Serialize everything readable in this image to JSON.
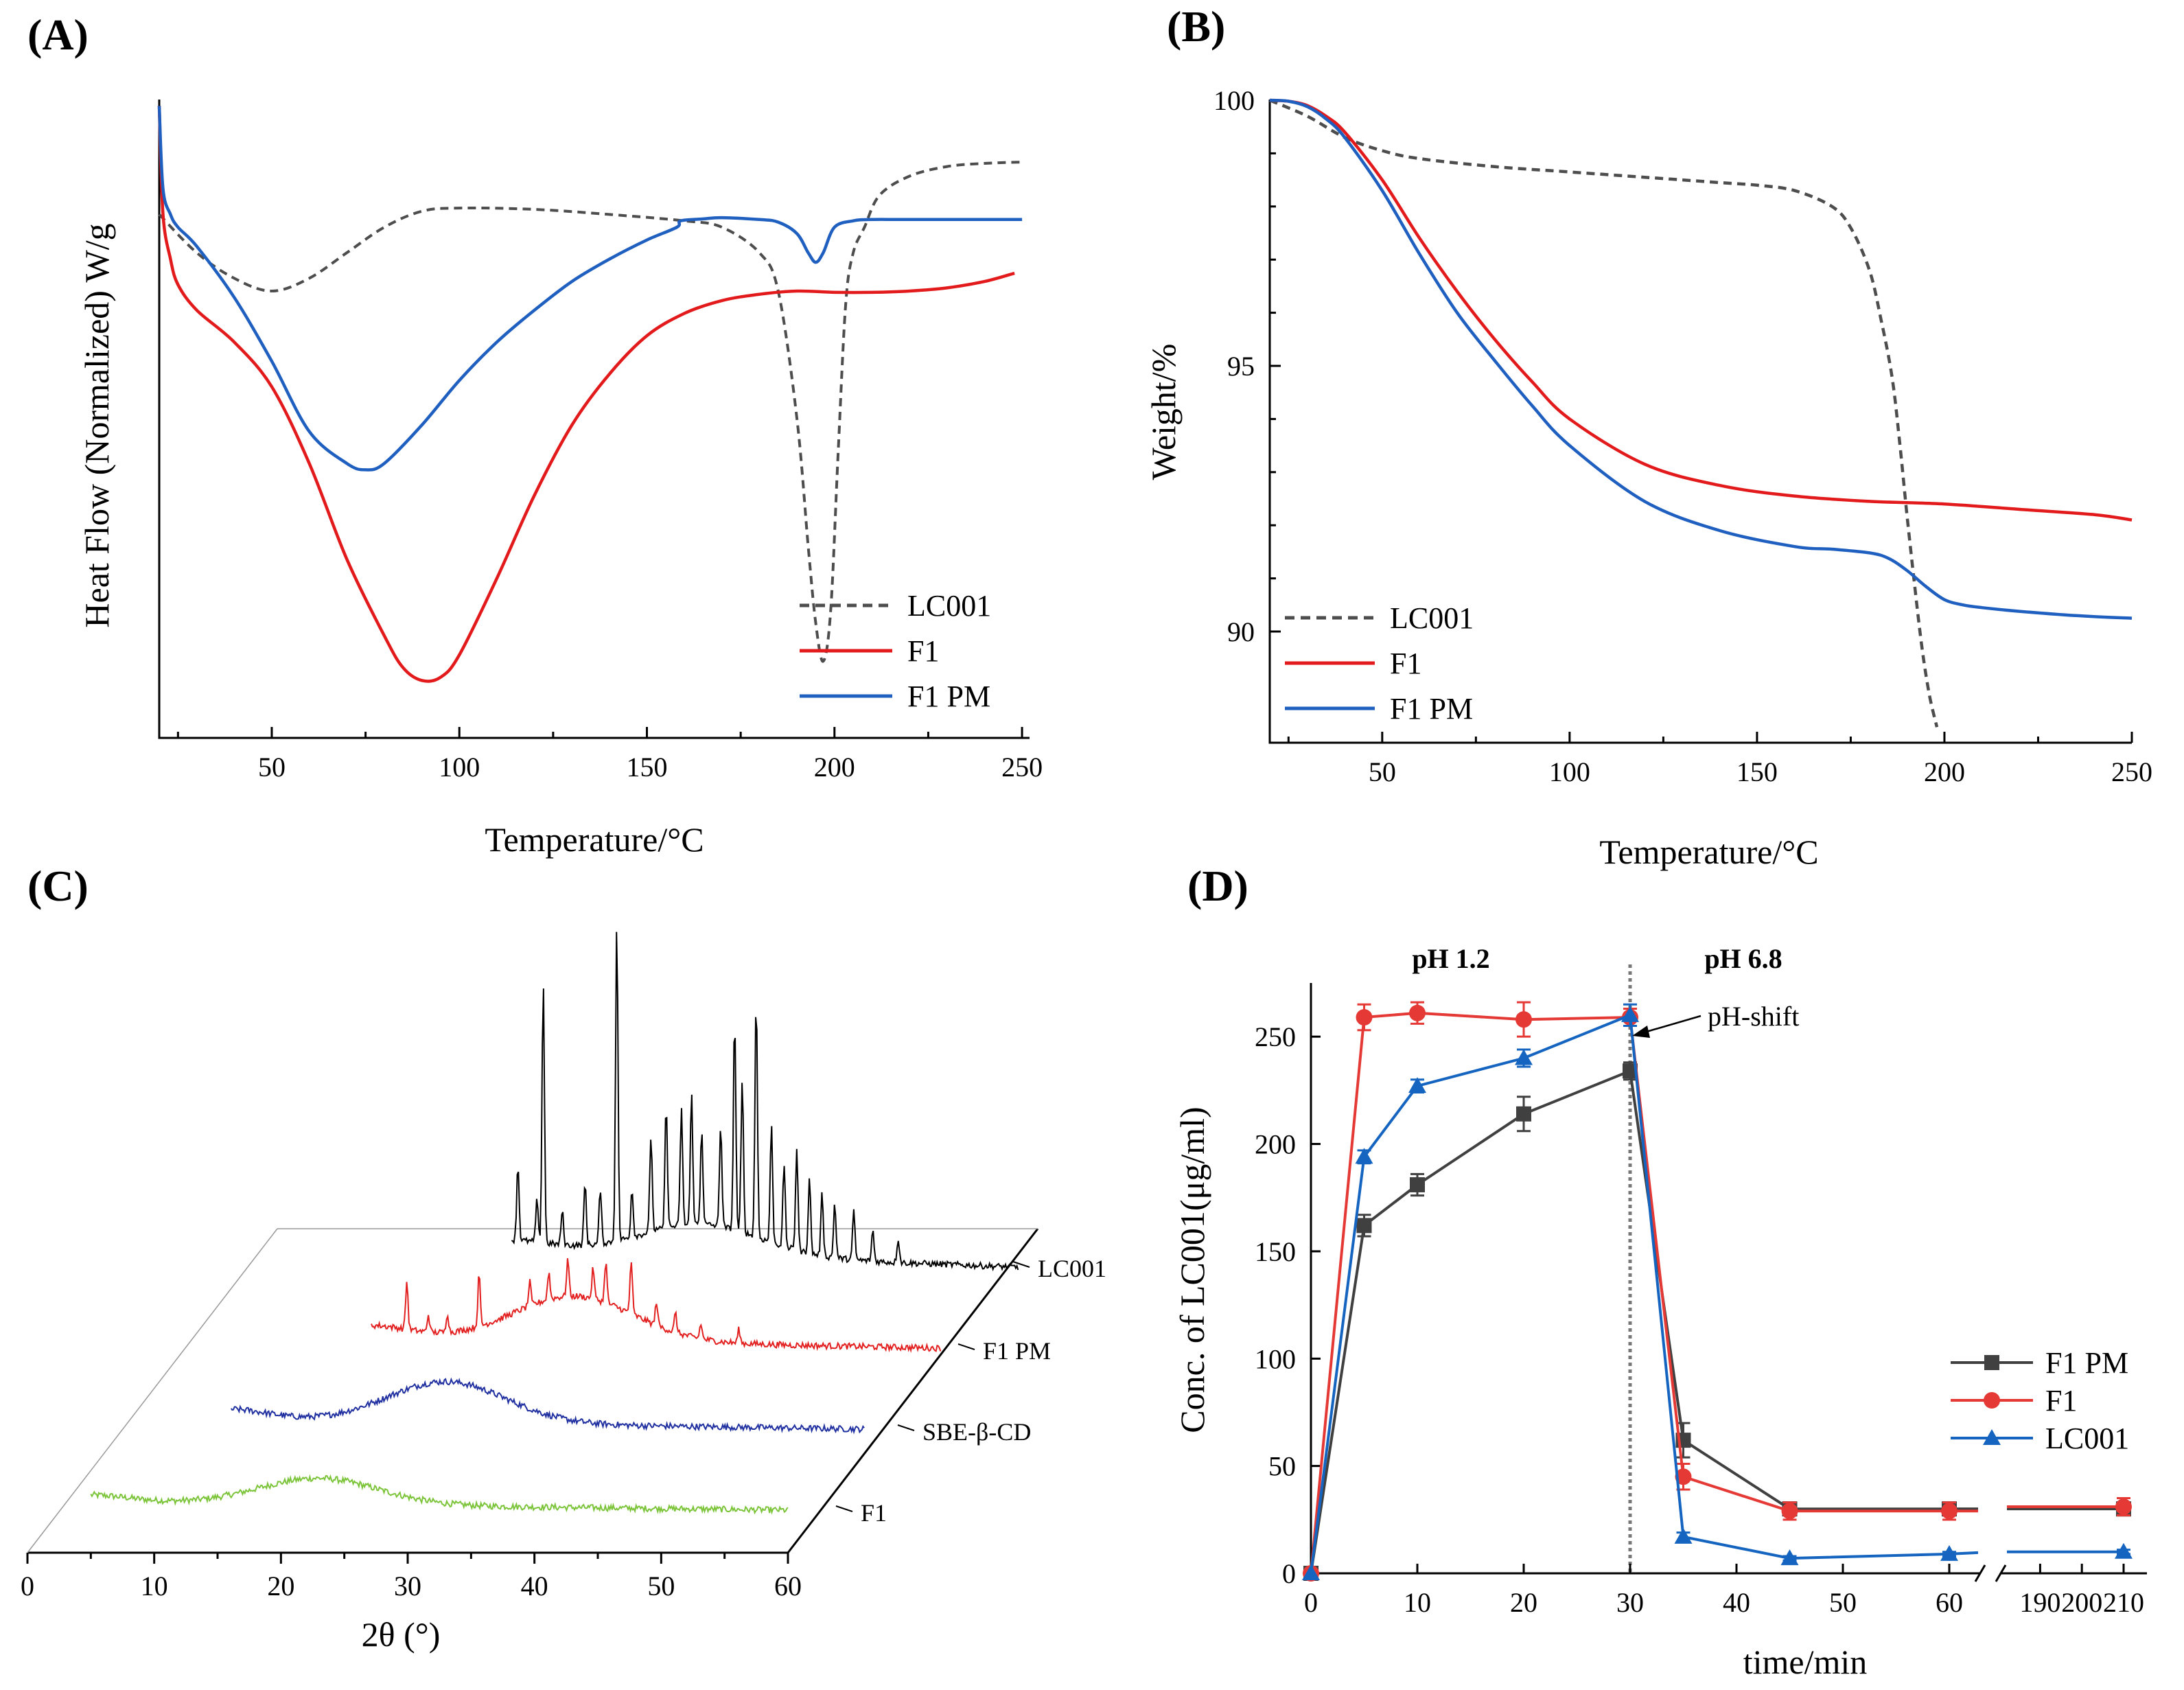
{
  "panels": {
    "A": "(A)",
    "B": "(B)",
    "C": "(C)",
    "D": "(D)"
  },
  "colors": {
    "LC001": "#4d4d4d",
    "F1": "#e31a1c",
    "F1_PM": "#1f5fbf",
    "D_F1PM": "#404040",
    "D_F1": "#e53935",
    "D_LC001": "#1565c0",
    "xrd_LC001": "#000000",
    "xrd_F1PM": "#e32020",
    "xrd_SBE": "#2030a0",
    "xrd_F1": "#7cc43a"
  },
  "chart_data": [
    {
      "id": "A",
      "type": "line",
      "title": "",
      "xlabel": "Temperature/°C",
      "ylabel": "Heat Flow (Normalized) W/g",
      "xlim": [
        20,
        250
      ],
      "ylim": [
        0,
        100
      ],
      "xticks": [
        "50",
        "100",
        "150",
        "200",
        "250"
      ],
      "legend": [
        "LC001",
        "F1",
        "F1 PM"
      ],
      "series": [
        {
          "name": "LC001",
          "style": "dashed",
          "x": [
            20,
            30,
            40,
            50,
            60,
            70,
            80,
            90,
            100,
            120,
            140,
            160,
            170,
            180,
            185,
            190,
            193,
            195,
            197,
            199,
            201,
            203,
            205,
            208,
            212,
            220,
            230,
            240,
            250
          ],
          "y": [
            82,
            76,
            72,
            70,
            72,
            76,
            80,
            82.5,
            83,
            82.8,
            82,
            81,
            80,
            76,
            70,
            50,
            30,
            18,
            12,
            20,
            45,
            68,
            76,
            80,
            85,
            88,
            89.5,
            90,
            90.2
          ]
        },
        {
          "name": "F1",
          "style": "solid",
          "x": [
            20,
            21,
            23,
            25,
            30,
            40,
            50,
            60,
            70,
            80,
            85,
            90,
            95,
            100,
            110,
            120,
            130,
            140,
            150,
            160,
            170,
            180,
            190,
            200,
            210,
            220,
            230,
            240,
            248
          ],
          "y": [
            99,
            82,
            75,
            71,
            67,
            62,
            55,
            43,
            28,
            16,
            11,
            9,
            9.5,
            13,
            25,
            38,
            49,
            57,
            63,
            66.5,
            68.5,
            69.5,
            70,
            69.8,
            69.8,
            70,
            70.5,
            71.5,
            72.8
          ]
        },
        {
          "name": "F1 PM",
          "style": "solid",
          "x": [
            20,
            21,
            23,
            25,
            30,
            40,
            50,
            60,
            70,
            75,
            80,
            90,
            100,
            110,
            120,
            130,
            140,
            150,
            158,
            159,
            165,
            170,
            180,
            185,
            190,
            193,
            195,
            197,
            200,
            205,
            210,
            220,
            250
          ],
          "y": [
            99,
            86,
            82,
            80,
            77,
            69,
            59,
            48,
            43,
            42,
            43,
            49,
            56,
            62,
            67,
            71.5,
            75,
            78,
            80,
            81,
            81.3,
            81.5,
            81.2,
            80.8,
            79,
            76,
            74.5,
            76,
            80,
            81,
            81.2,
            81.2,
            81.2
          ]
        }
      ]
    },
    {
      "id": "B",
      "type": "line",
      "title": "",
      "xlabel": "Temperature/°C",
      "ylabel": "Weight/%",
      "xlim": [
        20,
        250
      ],
      "ylim": [
        88,
        100.1
      ],
      "xticks": [
        "50",
        "100",
        "150",
        "200",
        "250"
      ],
      "yticks": [
        "90",
        "95",
        "100"
      ],
      "legend": [
        "LC001",
        "F1",
        "F1 PM"
      ],
      "series": [
        {
          "name": "LC001",
          "style": "dashed",
          "x": [
            20,
            30,
            40,
            50,
            60,
            80,
            100,
            120,
            140,
            150,
            160,
            170,
            175,
            180,
            183,
            186,
            188,
            190,
            192,
            194,
            196,
            198
          ],
          "y": [
            100,
            99.7,
            99.3,
            99.05,
            98.9,
            98.75,
            98.65,
            98.55,
            98.45,
            98.4,
            98.3,
            98.0,
            97.6,
            96.8,
            95.9,
            94.8,
            93.6,
            92.2,
            90.9,
            89.7,
            88.8,
            88.2
          ]
        },
        {
          "name": "F1",
          "style": "solid",
          "x": [
            20,
            25,
            30,
            35,
            40,
            50,
            60,
            70,
            80,
            90,
            100,
            120,
            140,
            160,
            180,
            200,
            220,
            240,
            250
          ],
          "y": [
            100,
            99.98,
            99.9,
            99.7,
            99.4,
            98.5,
            97.4,
            96.4,
            95.5,
            94.7,
            94.0,
            93.15,
            92.75,
            92.55,
            92.45,
            92.4,
            92.3,
            92.2,
            92.1
          ]
        },
        {
          "name": "F1 PM",
          "style": "solid",
          "x": [
            20,
            25,
            30,
            35,
            40,
            50,
            60,
            70,
            80,
            90,
            100,
            120,
            140,
            160,
            170,
            180,
            185,
            190,
            195,
            200,
            205,
            210,
            220,
            235,
            250
          ],
          "y": [
            100,
            99.98,
            99.88,
            99.65,
            99.3,
            98.3,
            97.1,
            96.0,
            95.1,
            94.25,
            93.5,
            92.45,
            91.9,
            91.6,
            91.55,
            91.48,
            91.38,
            91.15,
            90.85,
            90.6,
            90.5,
            90.45,
            90.38,
            90.3,
            90.25
          ]
        }
      ]
    },
    {
      "id": "C",
      "type": "line",
      "title": "",
      "xlabel": "2θ (°)",
      "ylabel": "",
      "xlim": [
        0,
        60
      ],
      "xticks": [
        "0",
        "10",
        "20",
        "30",
        "40",
        "50",
        "60"
      ],
      "series_labels": [
        "LC001",
        "F1 PM",
        "SBE-β-CD",
        "F1"
      ],
      "series": [
        {
          "name": "F1",
          "range": [
            5,
            60
          ],
          "baseline": 18,
          "hump_center": 23,
          "hump_height": 38,
          "peaks": []
        },
        {
          "name": "SBE-β-CD",
          "range": [
            10,
            60
          ],
          "baseline": 20,
          "hump_center": 27,
          "hump_height": 60,
          "peaks": []
        },
        {
          "name": "F1 PM",
          "range": [
            15,
            60
          ],
          "baseline": 24,
          "hump_center": 31,
          "hump_height": 65,
          "peaks": [
            [
              17.8,
              70
            ],
            [
              19.5,
              25
            ],
            [
              21,
              28
            ],
            [
              23.5,
              75
            ],
            [
              27.5,
              35
            ],
            [
              29,
              40
            ],
            [
              30.5,
              55
            ],
            [
              32.5,
              45
            ],
            [
              33.5,
              60
            ],
            [
              35.5,
              78
            ],
            [
              37.5,
              35
            ],
            [
              39,
              28
            ],
            [
              41,
              22
            ],
            [
              44,
              20
            ]
          ]
        },
        {
          "name": "LC001",
          "range": [
            20,
            60
          ],
          "baseline": 40,
          "hump_center": 35,
          "hump_height": 45,
          "peaks": [
            [
              20.5,
              110
            ],
            [
              22,
              60
            ],
            [
              22.5,
              380
            ],
            [
              24,
              50
            ],
            [
              25.8,
              90
            ],
            [
              27,
              80
            ],
            [
              28.3,
              460
            ],
            [
              29.5,
              70
            ],
            [
              31,
              140
            ],
            [
              32.2,
              180
            ],
            [
              33.4,
              170
            ],
            [
              34.2,
              190
            ],
            [
              35,
              140
            ],
            [
              36.5,
              150
            ],
            [
              37.6,
              310
            ],
            [
              38.2,
              220
            ],
            [
              39.3,
              350
            ],
            [
              40.5,
              170
            ],
            [
              41.5,
              120
            ],
            [
              42.5,
              150
            ],
            [
              43.5,
              110
            ],
            [
              44.5,
              90
            ],
            [
              45.5,
              80
            ],
            [
              47,
              70
            ],
            [
              48.5,
              45
            ],
            [
              50.5,
              35
            ]
          ]
        }
      ]
    },
    {
      "id": "D",
      "type": "line",
      "title": "",
      "xlabel": "time/min",
      "ylabel": "Conc. of LC001(μg/ml)",
      "xlim": [
        0,
        210
      ],
      "ylim": [
        0,
        275
      ],
      "xticks": [
        "0",
        "10",
        "20",
        "30",
        "40",
        "50",
        "60",
        "190",
        "200",
        "210"
      ],
      "yticks": [
        "0",
        "50",
        "100",
        "150",
        "200",
        "250"
      ],
      "annotations": [
        "pH 1.2",
        "pH 6.8",
        "pH-shift"
      ],
      "legend": [
        "F1 PM",
        "F1",
        "LC001"
      ],
      "series": [
        {
          "name": "F1 PM",
          "marker": "square",
          "x": [
            0,
            5,
            10,
            20,
            30,
            35,
            45,
            60,
            210
          ],
          "y": [
            0,
            162,
            181,
            214,
            234,
            62,
            30,
            30,
            30
          ],
          "err": [
            0,
            5,
            5,
            8,
            4,
            8,
            3,
            3,
            3
          ]
        },
        {
          "name": "F1",
          "marker": "circle",
          "x": [
            0,
            5,
            10,
            20,
            30,
            35,
            45,
            60,
            210
          ],
          "y": [
            0,
            259,
            261,
            258,
            259,
            45,
            29,
            29,
            31
          ],
          "err": [
            0,
            6,
            5,
            8,
            4,
            6,
            4,
            4,
            4
          ]
        },
        {
          "name": "LC001",
          "marker": "triangle",
          "x": [
            0,
            5,
            10,
            20,
            30,
            35,
            45,
            60,
            210
          ],
          "y": [
            0,
            194,
            227,
            240,
            260,
            17,
            7,
            9,
            10
          ],
          "err": [
            0,
            3,
            3,
            4,
            5,
            2,
            1,
            1,
            1
          ]
        }
      ]
    }
  ]
}
